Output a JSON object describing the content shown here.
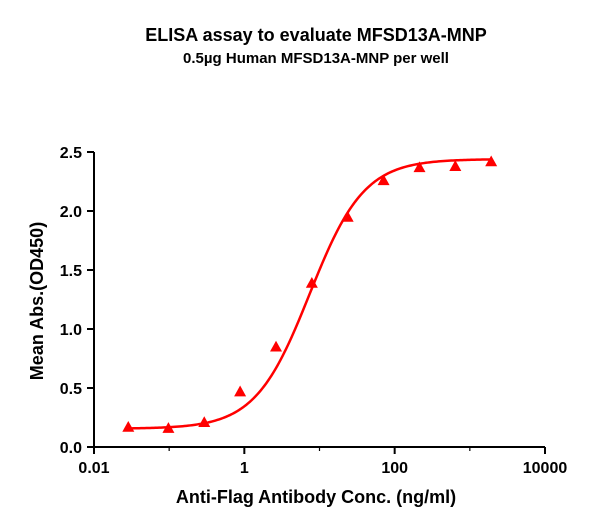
{
  "chart_data": {
    "type": "scatter",
    "title": "ELISA assay to evaluate MFSD13A-MNP",
    "subtitle": "0.5µg Human MFSD13A-MNP per well",
    "xlabel": "Anti-Flag Antibody Conc. (ng/ml)",
    "ylabel": "Mean Abs.(OD450)",
    "x_scale": "log",
    "xlim": [
      0.01,
      10000
    ],
    "ylim": [
      0,
      2.5
    ],
    "x_ticks": [
      0.01,
      1,
      100,
      10000
    ],
    "x_tick_labels": [
      "0.01",
      "1",
      "100",
      "10000"
    ],
    "y_ticks": [
      0,
      0.5,
      1,
      1.5,
      2,
      2.5
    ],
    "y_tick_labels": [
      "0.0",
      "0.5",
      "1.0",
      "1.5",
      "2.0",
      "2.5"
    ],
    "grid": false,
    "series": [
      {
        "color": "#ff0000",
        "marker": "triangle",
        "x": [
          0.0286,
          0.0977,
          0.293,
          0.879,
          2.64,
          7.91,
          23.7,
          71.2,
          214,
          641,
          1923
        ],
        "y": [
          0.17,
          0.16,
          0.21,
          0.47,
          0.85,
          1.39,
          1.95,
          2.26,
          2.37,
          2.38,
          2.42
        ]
      }
    ],
    "fit_curve": {
      "color": "#ff0000",
      "model": "4PL",
      "bottom": 0.155,
      "top": 2.44,
      "ec50": 7.4,
      "hill": 1.2
    }
  }
}
